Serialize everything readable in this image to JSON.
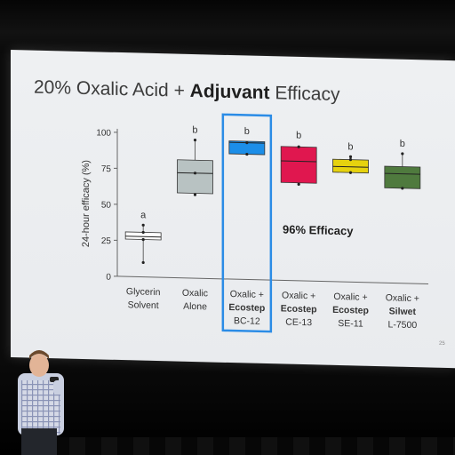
{
  "slide": {
    "title_plain": "20% Oxalic Acid + ",
    "title_bold": "Adjuvant",
    "title_tail": " Efficacy",
    "annotation": "96% Efficacy",
    "slide_number": "25"
  },
  "chart_data": {
    "type": "box",
    "title": "20% Oxalic Acid + Adjuvant Efficacy",
    "ylabel": "24-hour efficacy (%)",
    "ylim": [
      0,
      100
    ],
    "yticks": [
      0,
      25,
      50,
      75,
      100
    ],
    "highlighted_category": 2,
    "categories": [
      {
        "line1": "Glycerin",
        "line2": "Solvent",
        "line3": "",
        "letter": "a",
        "color": "#ffffff",
        "min": 10,
        "q1": 26,
        "median": 28,
        "q3": 31,
        "max": 36,
        "points": [
          10,
          26,
          31,
          36
        ]
      },
      {
        "line1": "Oxalic",
        "line2": "Alone",
        "line3": "",
        "letter": "b",
        "color": "#b8c2c2",
        "min": 58,
        "q1": 59,
        "median": 73,
        "q3": 82,
        "max": 96,
        "points": [
          58,
          73,
          96
        ]
      },
      {
        "line1": "Oxalic +",
        "line2": "Ecostep",
        "line3": "BC-12",
        "letter": "b",
        "color": "#1c8ee8",
        "min": 87,
        "q1": 87,
        "median": 95,
        "q3": 96,
        "max": 96,
        "points": [
          87,
          95
        ]
      },
      {
        "line1": "Oxalic +",
        "line2": "Ecostep",
        "line3": "CE-13",
        "letter": "b",
        "color": "#e0174f",
        "min": 67,
        "q1": 68,
        "median": 83,
        "q3": 93,
        "max": 94,
        "points": [
          67,
          93
        ]
      },
      {
        "line1": "Oxalic +",
        "line2": "Ecostep",
        "line3": "SE-11",
        "letter": "b",
        "color": "#e6d20e",
        "min": 75,
        "q1": 76,
        "median": 80,
        "q3": 85,
        "max": 87,
        "points": [
          76,
          85,
          87
        ]
      },
      {
        "line1": "Oxalic +",
        "line2": "Silwet",
        "line3": "L-7500",
        "letter": "b",
        "color": "#4f7a3e",
        "min": 66,
        "q1": 66,
        "median": 76,
        "q3": 81,
        "max": 90,
        "points": [
          66,
          90
        ]
      }
    ]
  }
}
